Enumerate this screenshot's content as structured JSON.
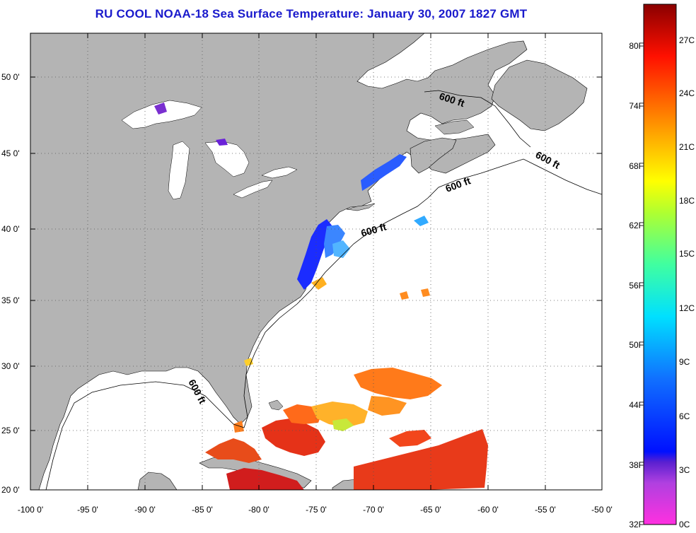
{
  "title": "RU COOL  NOAA-18  Sea Surface Temperature:  January 30, 2007 1827 GMT",
  "map": {
    "lat_ticks": [
      {
        "value": 50,
        "label": "50 0'"
      },
      {
        "value": 45,
        "label": "45 0'"
      },
      {
        "value": 40,
        "label": "40 0'"
      },
      {
        "value": 35,
        "label": "35 0'"
      },
      {
        "value": 30,
        "label": "30 0'"
      },
      {
        "value": 25,
        "label": "25 0'"
      },
      {
        "value": 20,
        "label": "20 0'"
      }
    ],
    "lon_ticks": [
      {
        "value": -100,
        "label": "-100 0'"
      },
      {
        "value": -95,
        "label": "-95 0'"
      },
      {
        "value": -90,
        "label": "-90 0'"
      },
      {
        "value": -85,
        "label": "-85 0'"
      },
      {
        "value": -80,
        "label": "-80 0'"
      },
      {
        "value": -75,
        "label": "-75 0'"
      },
      {
        "value": -70,
        "label": "-70 0'"
      },
      {
        "value": -65,
        "label": "-65 0'"
      },
      {
        "value": -60,
        "label": "-60 0'"
      },
      {
        "value": -55,
        "label": "-55 0'"
      },
      {
        "value": -50,
        "label": "-50 0'"
      }
    ],
    "lat_range": [
      20,
      52.5
    ],
    "lon_range": [
      -100,
      -50
    ],
    "contour_label": "600 ft",
    "land_color": "#b4b4b4",
    "ocean_color": "#ffffff"
  },
  "colorbar": {
    "fahrenheit_labels": [
      "80F",
      "74F",
      "68F",
      "62F",
      "56F",
      "50F",
      "44F",
      "38F",
      "32F"
    ],
    "celsius_labels": [
      "27C",
      "24C",
      "21C",
      "18C",
      "15C",
      "12C",
      "9C",
      "6C",
      "3C",
      "0C"
    ]
  }
}
